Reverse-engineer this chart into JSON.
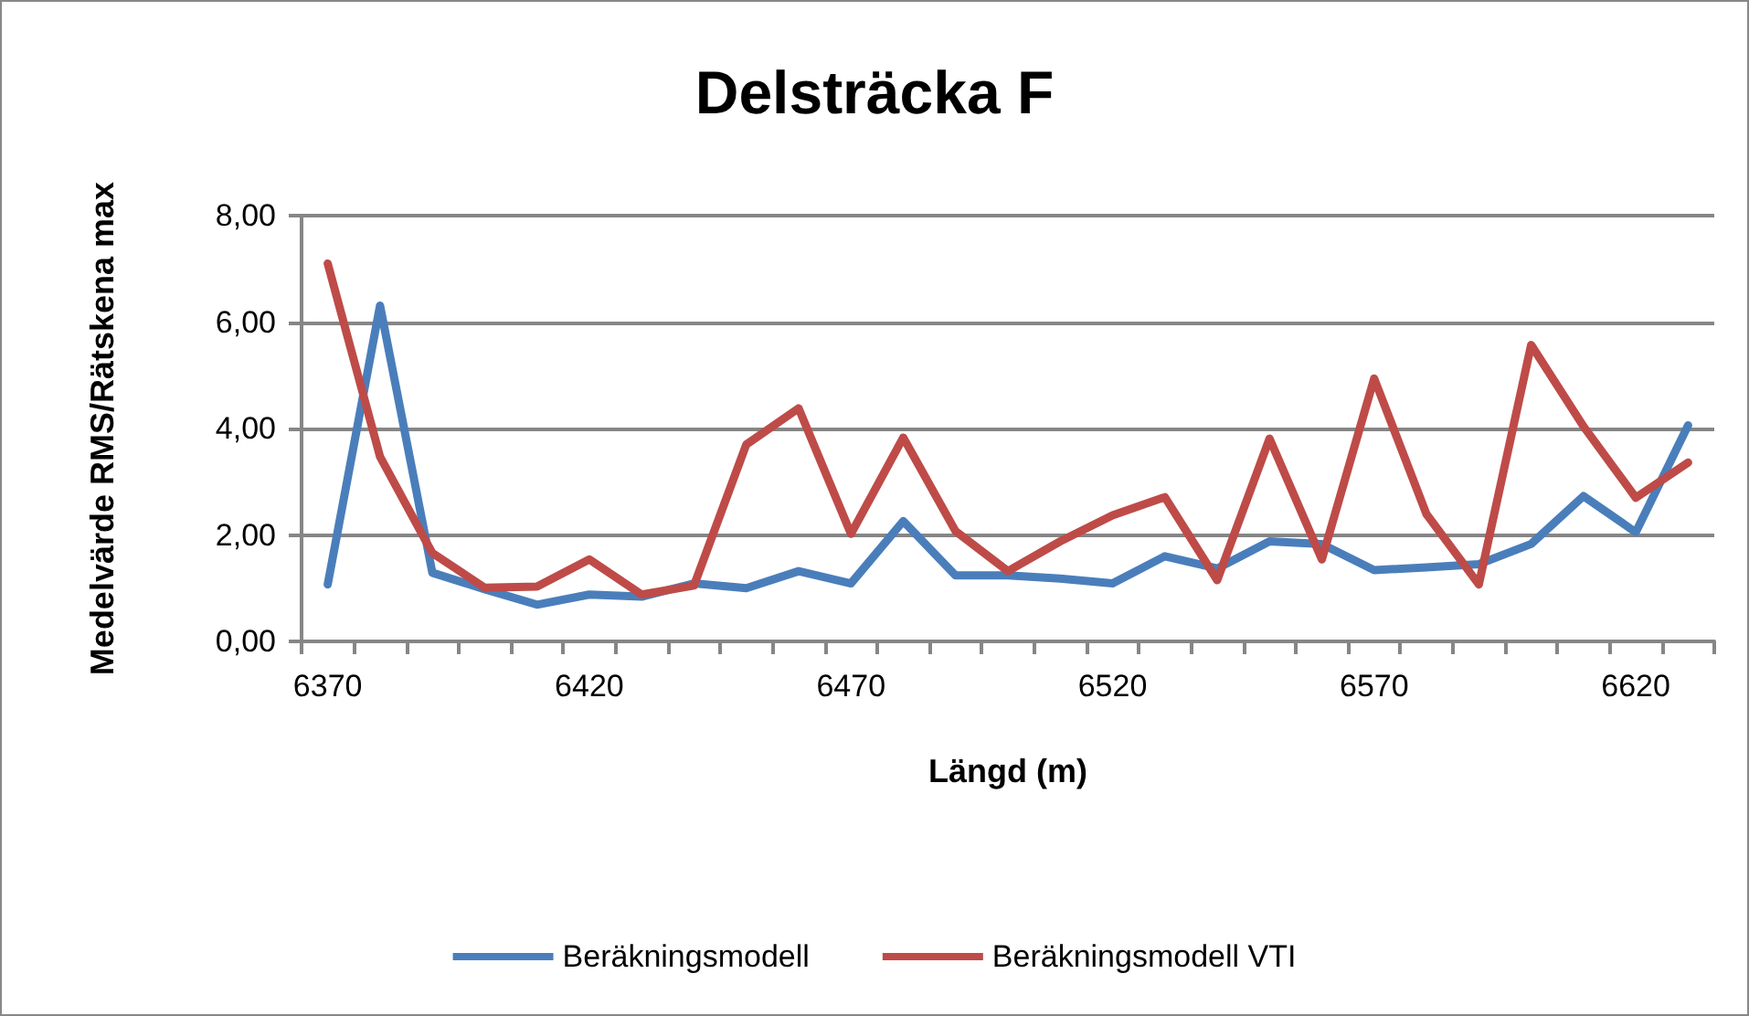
{
  "chart_data": {
    "type": "line",
    "title": "Delsträcka F",
    "xlabel": "Längd (m)",
    "ylabel": "Medelvärde RMS/Rätskena max",
    "categories": [
      "6370",
      null,
      null,
      null,
      null,
      "6420",
      null,
      null,
      null,
      null,
      "6470",
      null,
      null,
      null,
      null,
      "6520",
      null,
      null,
      null,
      null,
      "6570",
      null,
      null,
      null,
      null,
      "6620",
      null
    ],
    "series": [
      {
        "name": "Beräkningsmodell",
        "color": "#4a7ebb",
        "values": [
          1.07,
          6.31,
          1.29,
          0.98,
          0.69,
          0.88,
          0.84,
          1.09,
          1.0,
          1.32,
          1.09,
          2.26,
          1.24,
          1.24,
          1.18,
          1.09,
          1.6,
          1.37,
          1.88,
          1.83,
          1.34,
          1.39,
          1.45,
          1.83,
          2.73,
          2.05,
          4.06
        ]
      },
      {
        "name": "Beräkningsmodell VTI",
        "color": "#be4b48",
        "values": [
          7.1,
          3.47,
          1.66,
          1.01,
          1.03,
          1.54,
          0.88,
          1.05,
          3.7,
          4.38,
          2.02,
          3.83,
          2.07,
          1.32,
          1.88,
          2.37,
          2.71,
          1.15,
          3.81,
          1.54,
          4.94,
          2.39,
          1.07,
          5.57,
          4.04,
          2.7,
          3.36
        ]
      }
    ],
    "ylim": [
      0,
      8
    ],
    "yticks": [
      {
        "value": 0,
        "label": "0,00"
      },
      {
        "value": 2,
        "label": "2,00"
      },
      {
        "value": 4,
        "label": "4,00"
      },
      {
        "value": 6,
        "label": "6,00"
      },
      {
        "value": 8,
        "label": "8,00"
      }
    ],
    "grid": "y",
    "legend": "bottom",
    "marker": "none",
    "line_style": "solid"
  }
}
